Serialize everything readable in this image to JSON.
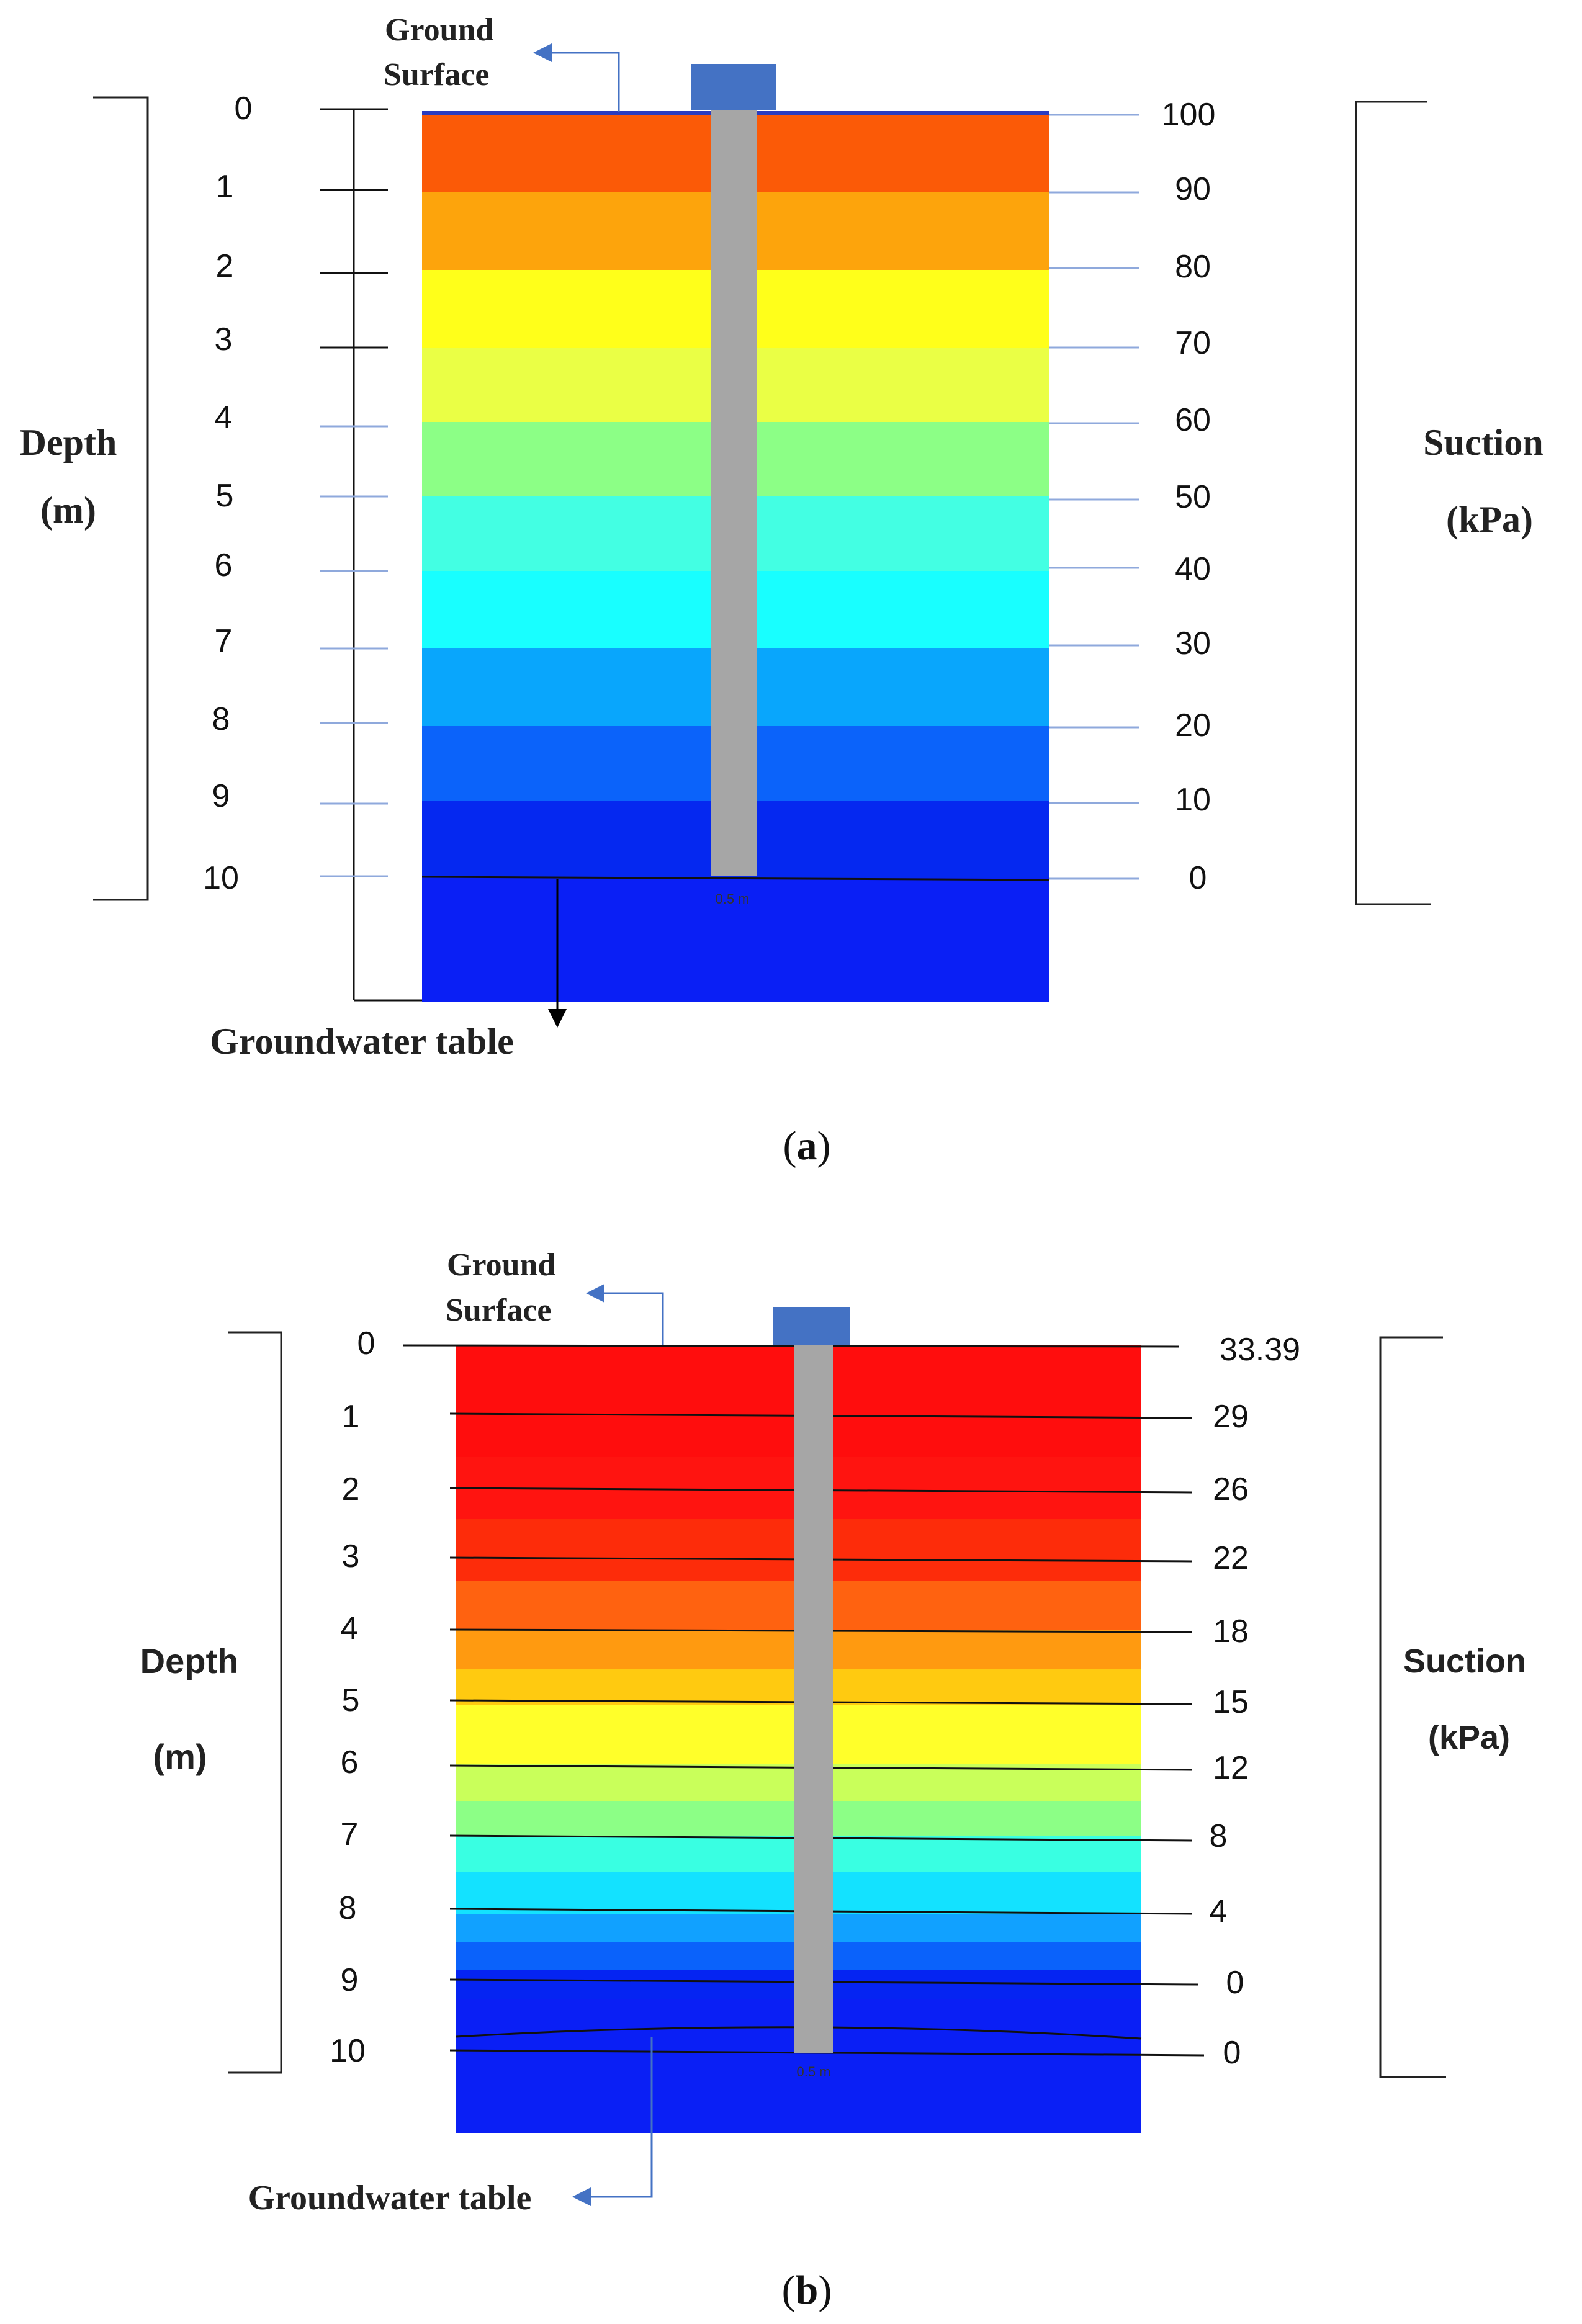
{
  "panel_a": {
    "ground_surface_line1": "Ground",
    "ground_surface_line2": "Surface",
    "depth_label": "Depth",
    "depth_unit": "(m)",
    "suction_label": "Suction",
    "suction_unit": "(kPa)",
    "depth_ticks": [
      "0",
      "1",
      "2",
      "3",
      "4",
      "5",
      "6",
      "7",
      "8",
      "9",
      "10"
    ],
    "suction_ticks": [
      "100",
      "90",
      "80",
      "70",
      "60",
      "50",
      "40",
      "30",
      "20",
      "10",
      "0"
    ],
    "pile_width_label": "0.5 m",
    "groundwater_label": "Groundwater table",
    "caption_open": "(",
    "caption_letter": "a",
    "caption_close": ")",
    "colors": [
      "#fb5a07",
      "#fda40c",
      "#ffff1a",
      "#eaff45",
      "#8cff86",
      "#43ffe3",
      "#18ffff",
      "#09a6fc",
      "#0b63fa",
      "#0528f0",
      "#0a1ff5"
    ]
  },
  "panel_b": {
    "ground_surface_line1": "Ground",
    "ground_surface_line2": "Surface",
    "depth_label": "Depth",
    "depth_unit": "(m)",
    "suction_label": "Suction",
    "suction_unit": "(kPa)",
    "depth_ticks": [
      "0",
      "1",
      "2",
      "3",
      "4",
      "5",
      "6",
      "7",
      "8",
      "9",
      "10"
    ],
    "suction_ticks": [
      "33.39",
      "29",
      "26",
      "22",
      "18",
      "15",
      "12",
      "8",
      "4",
      "0",
      "0"
    ],
    "pile_width_label": "0.5 m",
    "groundwater_label": "Groundwater table",
    "caption_open": "(",
    "caption_letter": "b",
    "caption_close": ")",
    "colors": [
      "#ff0d0d",
      "#fd2c0a",
      "#ff6210",
      "#ff9a10",
      "#ffca10",
      "#ffff2a",
      "#c9ff5a",
      "#8cff86",
      "#39ffe2",
      "#13e2ff",
      "#11a1ff",
      "#0a62fb",
      "#0524f2",
      "#0a1ff5"
    ]
  },
  "palette": {
    "pile": "#a6a6a6",
    "pile_cap": "#4472c4",
    "tick_blue": "#8fa9dc",
    "arrow_blue": "#4472c4"
  }
}
